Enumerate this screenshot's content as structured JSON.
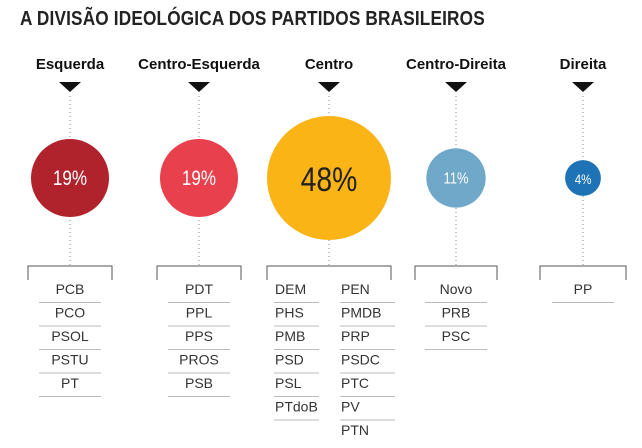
{
  "title": "A DIVISÃO IDEOLÓGICA DOS PARTIDOS BRASILEIROS",
  "chart_data": {
    "type": "bubble",
    "title": "A DIVISÃO IDEOLÓGICA DOS PARTIDOS BRASILEIROS",
    "categories": [
      "Esquerda",
      "Centro-Esquerda",
      "Centro",
      "Centro-Direita",
      "Direita"
    ],
    "values": [
      19,
      19,
      48,
      11,
      4
    ],
    "labels": [
      "19%",
      "19%",
      "48%",
      "11%",
      "4%"
    ],
    "colors": [
      "#b0232d",
      "#e8404c",
      "#fbb416",
      "#6fa8c9",
      "#1d73b5"
    ],
    "label_colors": [
      "#ffffff",
      "#ffffff",
      "#222222",
      "#ffffff",
      "#ffffff"
    ],
    "parties": [
      [
        [
          "PCB",
          "PCO",
          "PSOL",
          "PSTU",
          "PT"
        ]
      ],
      [
        [
          "PDT",
          "PPL",
          "PPS",
          "PROS",
          "PSB"
        ]
      ],
      [
        [
          "DEM",
          "PHS",
          "PMB",
          "PSD",
          "PSL",
          "PTdoB"
        ],
        [
          "PEN",
          "PMDB",
          "PRP",
          "PSDC",
          "PTC",
          "PV",
          "PTN"
        ]
      ],
      [
        [
          "Novo",
          "PRB",
          "PSC"
        ]
      ],
      [
        [
          "PP"
        ]
      ]
    ]
  }
}
